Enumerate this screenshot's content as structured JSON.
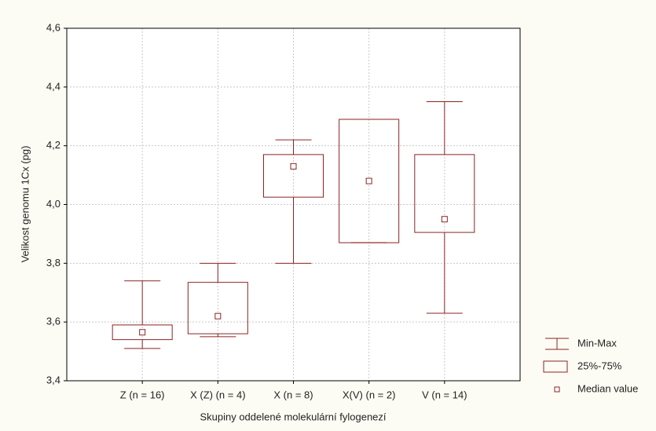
{
  "chart_data": {
    "type": "box",
    "x_label": "Skupiny oddelené molekulární fylogenezí",
    "y_label": "Velikost genomu 1Cx (pg)",
    "categories": [
      "Z (n = 16)",
      "X (Z) (n = 4)",
      "X (n = 8)",
      "X(V) (n = 2)",
      "V (n = 14)"
    ],
    "min": [
      3.51,
      3.55,
      3.8,
      3.87,
      3.63
    ],
    "q1": [
      3.54,
      3.56,
      4.025,
      3.87,
      3.905
    ],
    "median": [
      3.565,
      3.62,
      4.13,
      4.08,
      3.95
    ],
    "q3": [
      3.59,
      3.735,
      4.17,
      4.29,
      4.17
    ],
    "max": [
      3.74,
      3.8,
      4.22,
      4.29,
      4.35
    ],
    "color": "#8b2323",
    "ylim": [
      3.4,
      4.6
    ],
    "yticks": [
      {
        "value": 3.4,
        "label": "3,4"
      },
      {
        "value": 3.6,
        "label": "3,6"
      },
      {
        "value": 3.8,
        "label": "3,8"
      },
      {
        "value": 4.0,
        "label": "4,0"
      },
      {
        "value": 4.2,
        "label": "4,2"
      },
      {
        "value": 4.4,
        "label": "4,4"
      },
      {
        "value": 4.6,
        "label": "4,6"
      }
    ],
    "grid": true,
    "legend": [
      "Min-Max",
      "25%-75%",
      "Median value"
    ],
    "legend_position": "lower right"
  }
}
